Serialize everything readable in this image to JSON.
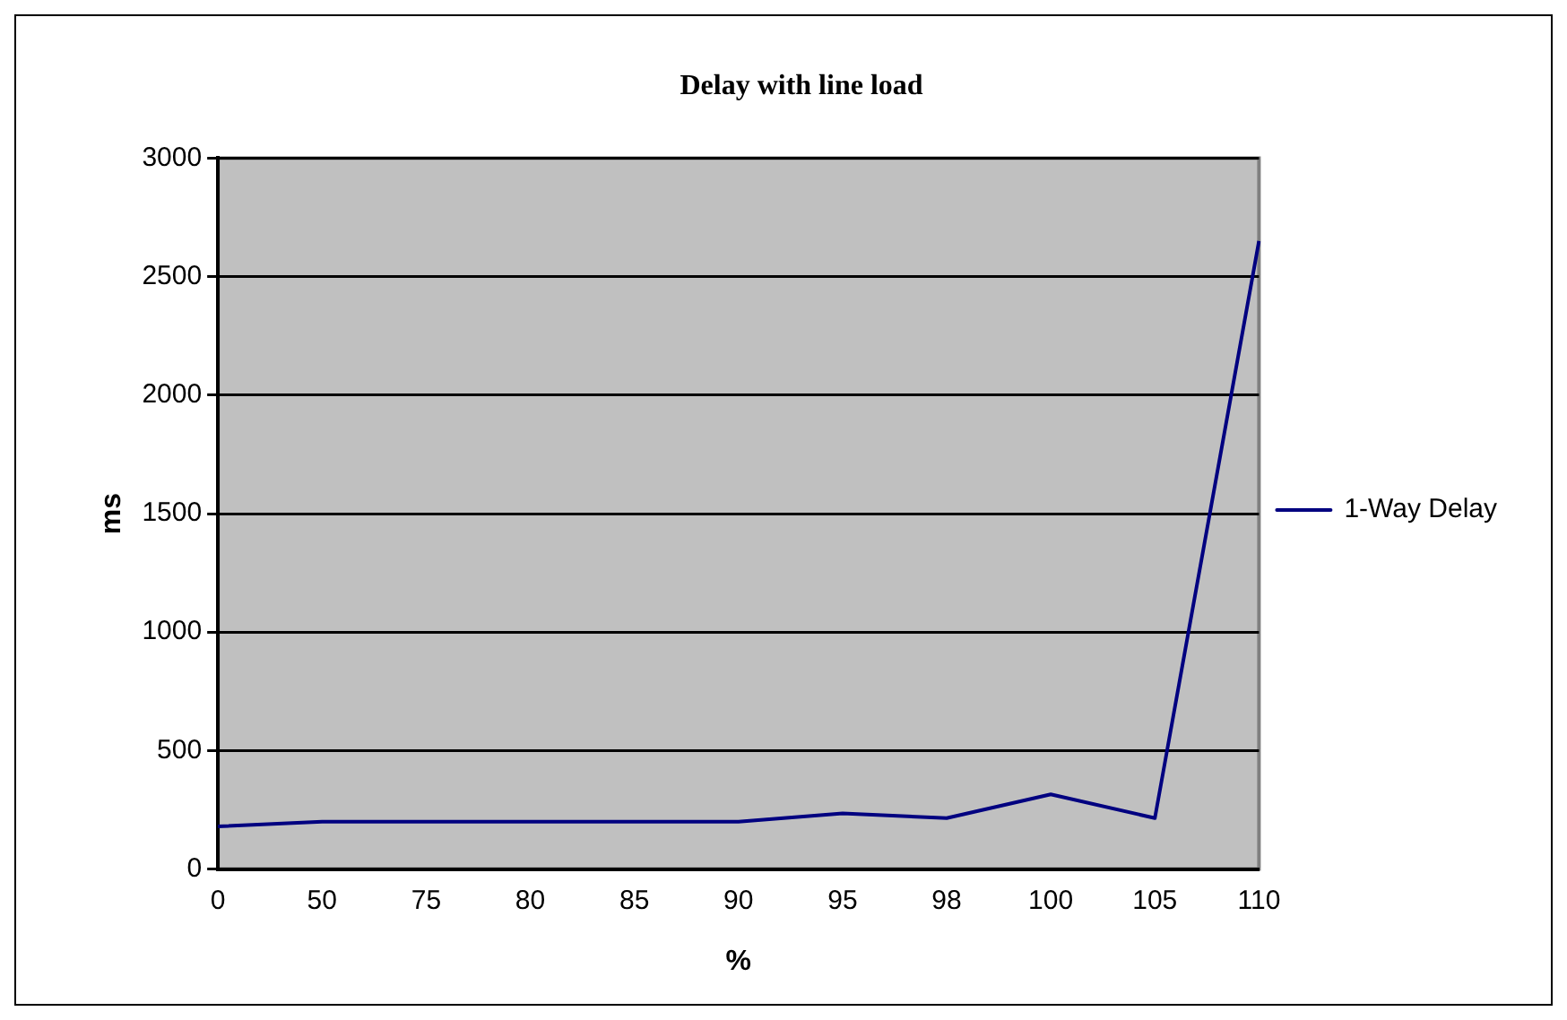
{
  "chart_data": {
    "type": "line",
    "title": "Delay with line load",
    "xlabel": "%",
    "ylabel": "ms",
    "categories": [
      "0",
      "50",
      "75",
      "80",
      "85",
      "90",
      "95",
      "98",
      "100",
      "105",
      "110"
    ],
    "series": [
      {
        "name": "1-Way Delay",
        "color": "#000080",
        "values": [
          180,
          200,
          200,
          200,
          200,
          200,
          235,
          215,
          315,
          215,
          2650
        ]
      }
    ],
    "ylim": [
      0,
      3000
    ],
    "yticks": [
      0,
      500,
      1000,
      1500,
      2000,
      2500,
      3000
    ],
    "grid": "y",
    "legend": "right",
    "marker": "none",
    "line_style": "solid"
  }
}
